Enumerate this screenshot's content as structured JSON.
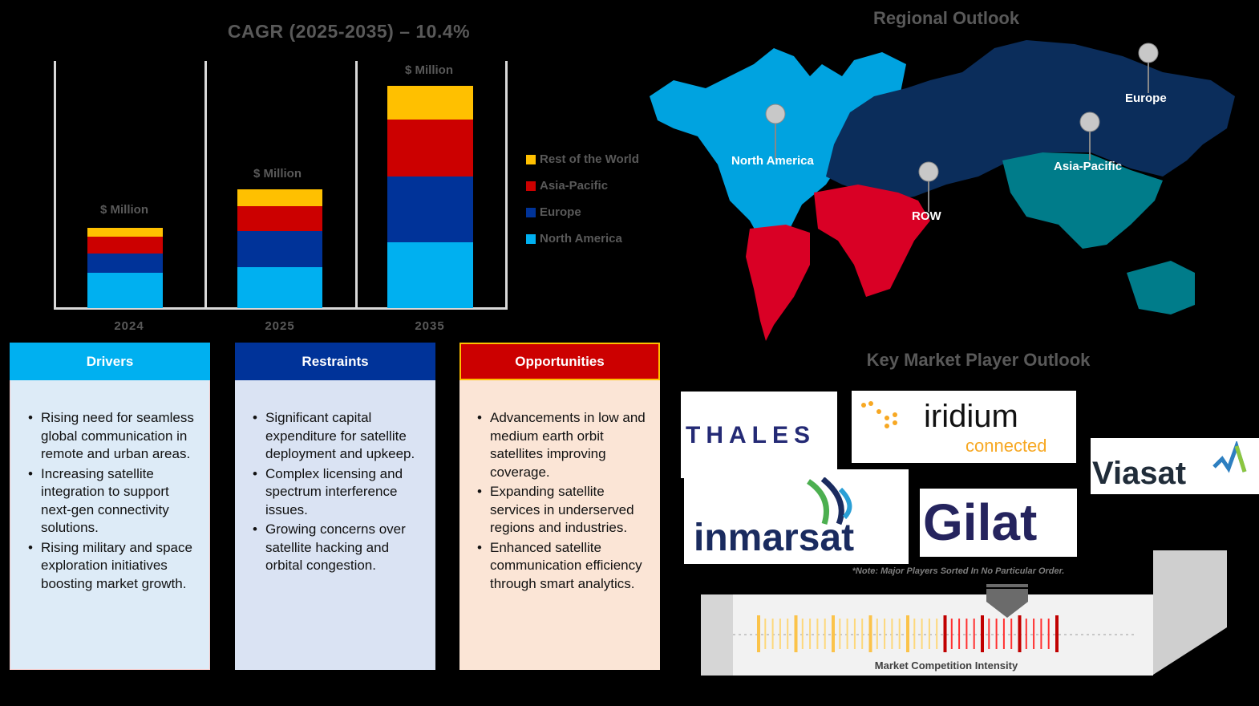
{
  "chart_title": "CAGR (2025-2035) – 10.4%",
  "chart_data": {
    "type": "bar",
    "stacked": true,
    "title": "CAGR (2025-2035) – 10.4%",
    "xlabel": "",
    "ylabel": "",
    "unit_label": "$ Million",
    "categories": [
      "2024",
      "2025",
      "2035"
    ],
    "series": [
      {
        "name": "North America",
        "color": "#00B0F0",
        "values": [
          44,
          51,
          82
        ]
      },
      {
        "name": "Europe",
        "color": "#003399",
        "values": [
          24,
          45,
          82
        ]
      },
      {
        "name": "Asia-Pacific",
        "color": "#CC0000",
        "values": [
          21,
          31,
          71
        ]
      },
      {
        "name": "Rest of the World",
        "color": "#FFC000",
        "values": [
          11,
          21,
          42
        ]
      }
    ],
    "note": "values are relative bar heights in px; no numeric axis shown",
    "grid": false,
    "legend_position": "right"
  },
  "bar_labels": [
    "$ Million",
    "$ Million",
    "$ Million"
  ],
  "legend": [
    {
      "label": "Rest of the World",
      "color": "#FFC000"
    },
    {
      "label": "Asia-Pacific",
      "color": "#CC0000"
    },
    {
      "label": "Europe",
      "color": "#003399"
    },
    {
      "label": "North America",
      "color": "#00B0F0"
    }
  ],
  "cards": {
    "drivers": {
      "title": "Drivers",
      "header_color": "#00B0F0",
      "body_color": "#DDEBF7",
      "items": [
        "Rising need for seamless global communication in remote and urban areas.",
        "Increasing satellite integration to support next-gen connectivity solutions.",
        "Rising military and space exploration initiatives boosting market growth."
      ]
    },
    "restraints": {
      "title": "Restraints",
      "header_color": "#003399",
      "body_color": "#DAE3F3",
      "items": [
        "Significant capital expenditure for satellite deployment and upkeep.",
        "Complex licensing and spectrum interference issues.",
        "Growing concerns over satellite hacking and orbital congestion."
      ]
    },
    "opportunities": {
      "title": "Opportunities",
      "header_color": "#CC0000",
      "body_color": "#FBE5D6",
      "items": [
        "Advancements in low and medium earth orbit satellites improving coverage.",
        "Expanding satellite services in underserved regions and industries.",
        "Enhanced satellite communication efficiency through smart analytics."
      ]
    }
  },
  "regional": {
    "title": "Regional Outlook",
    "regions": [
      {
        "label": "North America",
        "color": "#00A3E0"
      },
      {
        "label": "Europe",
        "color": "#0B2D5B"
      },
      {
        "label": "Asia-Pacific",
        "color": "#007C8A"
      },
      {
        "label": "ROW",
        "color": "#D90025"
      }
    ]
  },
  "players": {
    "title": "Key Market Player Outlook",
    "logos": [
      "THALES",
      "iridium",
      "connected",
      "Viasat",
      "inmarsat",
      "Gilat"
    ],
    "note": "*Note: Major Players Sorted In No Particular Order."
  },
  "intensity": {
    "label": "Market Competition Intensity"
  }
}
